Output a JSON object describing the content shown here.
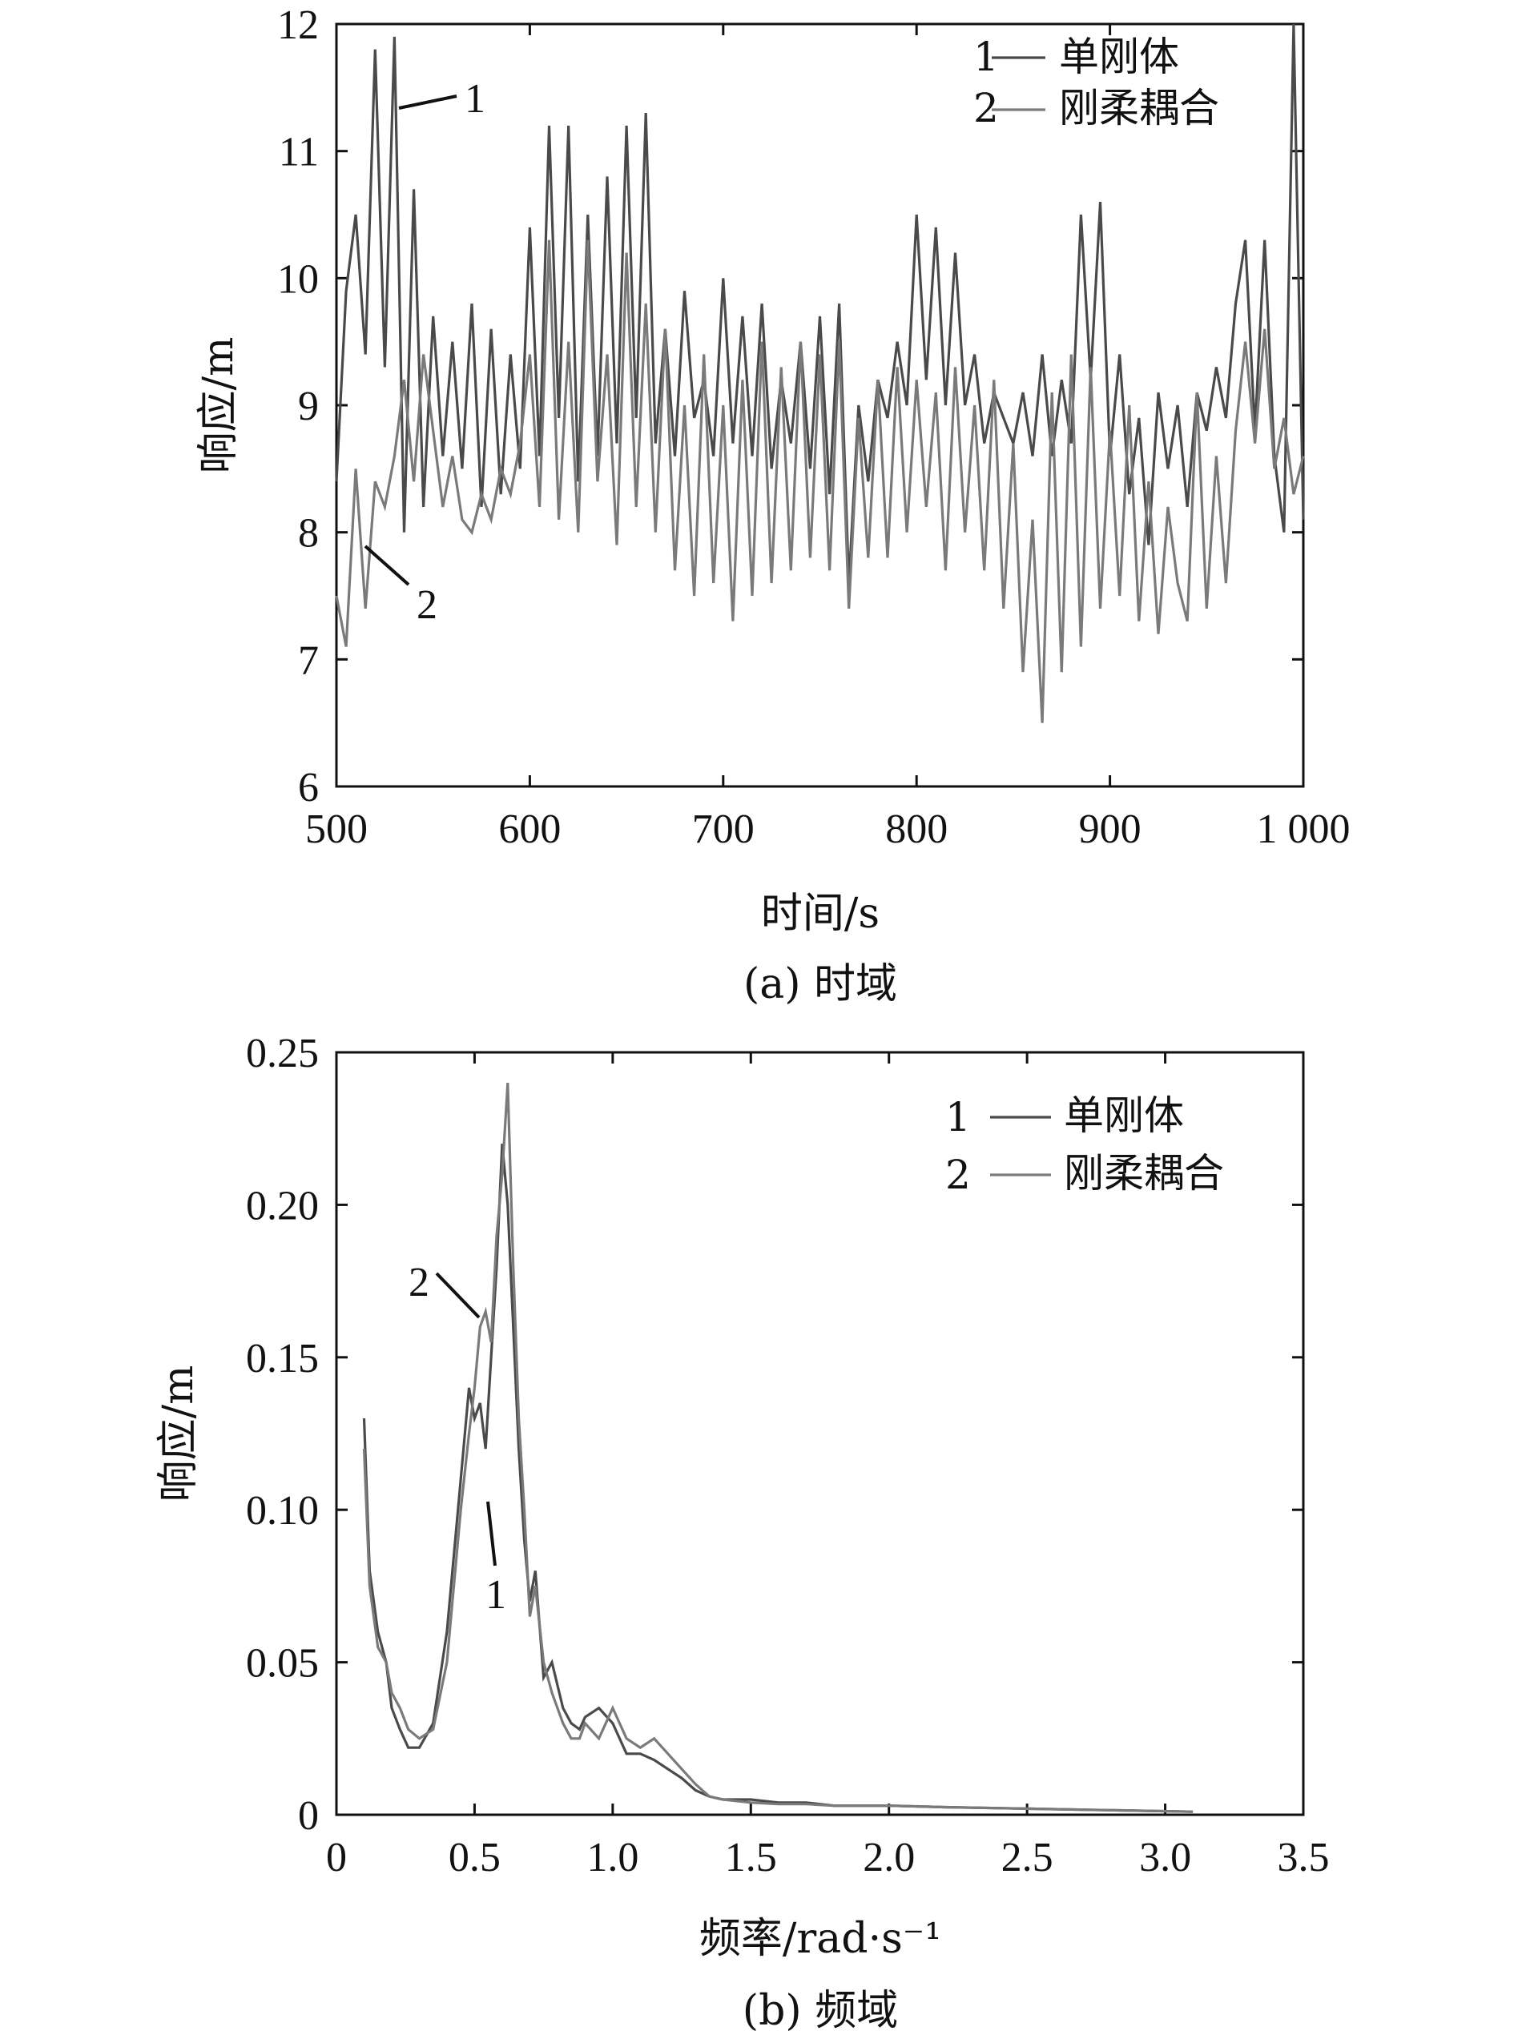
{
  "chart_data": [
    {
      "id": "time",
      "type": "line",
      "xlabel": "时间/s",
      "ylabel": "响应/m",
      "caption": "(a) 时域",
      "xlim": [
        500,
        1000
      ],
      "ylim": [
        6,
        12
      ],
      "xticks": [
        500,
        600,
        700,
        800,
        900,
        1000
      ],
      "xtick_labels": [
        "500",
        "600",
        "700",
        "800",
        "900",
        "1 000"
      ],
      "yticks": [
        6,
        7,
        8,
        9,
        10,
        11,
        12
      ],
      "ytick_labels": [
        "6",
        "7",
        "8",
        "9",
        "10",
        "11",
        "12"
      ],
      "legend": [
        {
          "num": "1",
          "label": "单刚体"
        },
        {
          "num": "2",
          "label": "刚柔耦合"
        }
      ],
      "annotations": [
        {
          "text": "1",
          "x": 530,
          "y": 11.3
        },
        {
          "text": "2",
          "x": 513,
          "y": 7.85
        }
      ],
      "series": [
        {
          "name": "单刚体",
          "x": [
            500,
            505,
            510,
            515,
            520,
            525,
            530,
            535,
            540,
            545,
            550,
            555,
            560,
            565,
            570,
            575,
            580,
            585,
            590,
            595,
            600,
            605,
            610,
            615,
            620,
            625,
            630,
            635,
            640,
            645,
            650,
            655,
            660,
            665,
            670,
            675,
            680,
            685,
            690,
            695,
            700,
            705,
            710,
            715,
            720,
            725,
            730,
            735,
            740,
            745,
            750,
            755,
            760,
            765,
            770,
            775,
            780,
            785,
            790,
            795,
            800,
            805,
            810,
            815,
            820,
            825,
            830,
            835,
            840,
            845,
            850,
            855,
            860,
            865,
            870,
            875,
            880,
            885,
            890,
            895,
            900,
            905,
            910,
            915,
            920,
            925,
            930,
            935,
            940,
            945,
            950,
            955,
            960,
            965,
            970,
            975,
            980,
            985,
            990,
            995,
            1000
          ],
          "y": [
            8.4,
            9.9,
            10.5,
            9.4,
            11.8,
            9.3,
            11.9,
            8.0,
            10.7,
            8.2,
            9.7,
            8.6,
            9.5,
            8.5,
            9.8,
            8.2,
            9.6,
            8.3,
            9.4,
            8.5,
            10.4,
            8.6,
            11.2,
            8.9,
            11.2,
            8.4,
            10.5,
            8.6,
            10.8,
            8.7,
            11.2,
            8.9,
            11.3,
            8.7,
            9.6,
            8.6,
            9.9,
            8.9,
            9.2,
            8.6,
            10.0,
            8.7,
            9.7,
            8.6,
            9.8,
            8.5,
            9.2,
            8.7,
            9.5,
            8.5,
            9.7,
            8.3,
            9.8,
            7.6,
            9.0,
            8.4,
            9.2,
            8.9,
            9.5,
            9.0,
            10.5,
            9.2,
            10.4,
            9.0,
            10.2,
            9.0,
            9.4,
            8.7,
            9.1,
            8.9,
            8.7,
            9.1,
            8.6,
            9.4,
            8.6,
            9.2,
            8.7,
            10.5,
            9.2,
            10.6,
            8.6,
            9.4,
            8.3,
            8.9,
            7.9,
            9.1,
            8.5,
            9.0,
            8.2,
            9.1,
            8.8,
            9.3,
            8.9,
            9.8,
            10.3,
            8.8,
            10.3,
            8.6,
            8.0,
            12.0,
            8.1
          ]
        },
        {
          "name": "刚柔耦合",
          "x": [
            500,
            505,
            510,
            515,
            520,
            525,
            530,
            535,
            540,
            545,
            550,
            555,
            560,
            565,
            570,
            575,
            580,
            585,
            590,
            595,
            600,
            605,
            610,
            615,
            620,
            625,
            630,
            635,
            640,
            645,
            650,
            655,
            660,
            665,
            670,
            675,
            680,
            685,
            690,
            695,
            700,
            705,
            710,
            715,
            720,
            725,
            730,
            735,
            740,
            745,
            750,
            755,
            760,
            765,
            770,
            775,
            780,
            785,
            790,
            795,
            800,
            805,
            810,
            815,
            820,
            825,
            830,
            835,
            840,
            845,
            850,
            855,
            860,
            865,
            870,
            875,
            880,
            885,
            890,
            895,
            900,
            905,
            910,
            915,
            920,
            925,
            930,
            935,
            940,
            945,
            950,
            955,
            960,
            965,
            970,
            975,
            980,
            985,
            990,
            995,
            1000
          ],
          "y": [
            7.5,
            7.1,
            8.5,
            7.4,
            8.4,
            8.2,
            8.6,
            9.2,
            8.4,
            9.4,
            8.8,
            8.2,
            8.6,
            8.1,
            8.0,
            8.3,
            8.1,
            8.5,
            8.3,
            8.7,
            9.4,
            8.2,
            10.3,
            8.1,
            9.5,
            8.0,
            10.3,
            8.4,
            9.4,
            7.9,
            10.2,
            8.2,
            9.8,
            8.0,
            9.6,
            7.7,
            9.0,
            7.5,
            9.4,
            7.6,
            9.0,
            7.3,
            9.2,
            7.5,
            9.5,
            7.6,
            9.3,
            7.7,
            9.5,
            7.8,
            9.4,
            7.7,
            9.5,
            7.4,
            8.9,
            7.8,
            9.2,
            7.8,
            9.3,
            8.0,
            9.2,
            8.2,
            9.1,
            7.7,
            9.3,
            8.0,
            9.0,
            7.7,
            9.2,
            7.4,
            8.7,
            6.9,
            8.1,
            6.5,
            9.1,
            6.9,
            9.4,
            7.1,
            9.3,
            7.4,
            8.8,
            7.5,
            9.0,
            7.3,
            8.4,
            7.2,
            8.2,
            7.6,
            7.3,
            9.1,
            7.4,
            8.6,
            7.6,
            8.8,
            9.5,
            8.7,
            9.6,
            8.5,
            8.9,
            8.3,
            8.6
          ]
        }
      ]
    },
    {
      "id": "freq",
      "type": "line",
      "xlabel": "频率/rad·s⁻¹",
      "ylabel": "响应/m",
      "caption": "(b) 频域",
      "xlim": [
        0,
        3.5
      ],
      "ylim": [
        0,
        0.25
      ],
      "xticks": [
        0,
        0.5,
        1.0,
        1.5,
        2.0,
        2.5,
        3.0,
        3.5
      ],
      "xtick_labels": [
        "0",
        "0.5",
        "1.0",
        "1.5",
        "2.0",
        "2.5",
        "3.0",
        "3.5"
      ],
      "yticks": [
        0,
        0.05,
        0.1,
        0.15,
        0.2,
        0.25
      ],
      "ytick_labels": [
        "0",
        "0.05",
        "0.10",
        "0.15",
        "0.20",
        "0.25"
      ],
      "legend": [
        {
          "num": "1",
          "label": "单刚体"
        },
        {
          "num": "2",
          "label": "刚柔耦合"
        }
      ],
      "annotations": [
        {
          "text": "2",
          "x": 0.38,
          "y": 0.17
        },
        {
          "text": "1",
          "x": 0.57,
          "y": 0.075
        }
      ],
      "series": [
        {
          "name": "单刚体",
          "x": [
            0.1,
            0.12,
            0.15,
            0.18,
            0.2,
            0.23,
            0.26,
            0.3,
            0.35,
            0.4,
            0.45,
            0.48,
            0.5,
            0.52,
            0.54,
            0.56,
            0.58,
            0.6,
            0.62,
            0.64,
            0.66,
            0.68,
            0.7,
            0.72,
            0.75,
            0.78,
            0.82,
            0.85,
            0.88,
            0.9,
            0.95,
            1.0,
            1.05,
            1.1,
            1.15,
            1.2,
            1.25,
            1.3,
            1.35,
            1.4,
            1.5,
            1.6,
            1.7,
            1.8,
            2.0,
            2.2,
            2.5,
            2.8,
            3.1
          ],
          "y": [
            0.13,
            0.08,
            0.06,
            0.05,
            0.035,
            0.028,
            0.022,
            0.022,
            0.03,
            0.06,
            0.11,
            0.14,
            0.13,
            0.135,
            0.12,
            0.15,
            0.18,
            0.22,
            0.2,
            0.16,
            0.12,
            0.09,
            0.07,
            0.08,
            0.045,
            0.05,
            0.035,
            0.03,
            0.028,
            0.032,
            0.035,
            0.03,
            0.02,
            0.02,
            0.018,
            0.015,
            0.012,
            0.008,
            0.006,
            0.005,
            0.005,
            0.004,
            0.004,
            0.003,
            0.003,
            0.0025,
            0.002,
            0.0015,
            0.001
          ]
        },
        {
          "name": "刚柔耦合",
          "x": [
            0.1,
            0.12,
            0.15,
            0.18,
            0.2,
            0.23,
            0.26,
            0.3,
            0.35,
            0.4,
            0.45,
            0.48,
            0.5,
            0.52,
            0.54,
            0.56,
            0.58,
            0.6,
            0.62,
            0.64,
            0.66,
            0.68,
            0.7,
            0.72,
            0.75,
            0.78,
            0.82,
            0.85,
            0.88,
            0.9,
            0.95,
            1.0,
            1.05,
            1.1,
            1.15,
            1.2,
            1.25,
            1.3,
            1.35,
            1.4,
            1.5,
            1.6,
            1.7,
            1.8,
            2.0,
            2.2,
            2.5,
            2.8,
            3.1
          ],
          "y": [
            0.12,
            0.075,
            0.055,
            0.05,
            0.04,
            0.035,
            0.028,
            0.025,
            0.028,
            0.05,
            0.1,
            0.125,
            0.14,
            0.16,
            0.165,
            0.155,
            0.19,
            0.21,
            0.24,
            0.18,
            0.13,
            0.1,
            0.065,
            0.075,
            0.05,
            0.04,
            0.03,
            0.025,
            0.025,
            0.03,
            0.025,
            0.035,
            0.025,
            0.022,
            0.025,
            0.02,
            0.015,
            0.01,
            0.006,
            0.005,
            0.004,
            0.0035,
            0.0035,
            0.003,
            0.003,
            0.0025,
            0.002,
            0.0015,
            0.001
          ]
        }
      ]
    }
  ]
}
